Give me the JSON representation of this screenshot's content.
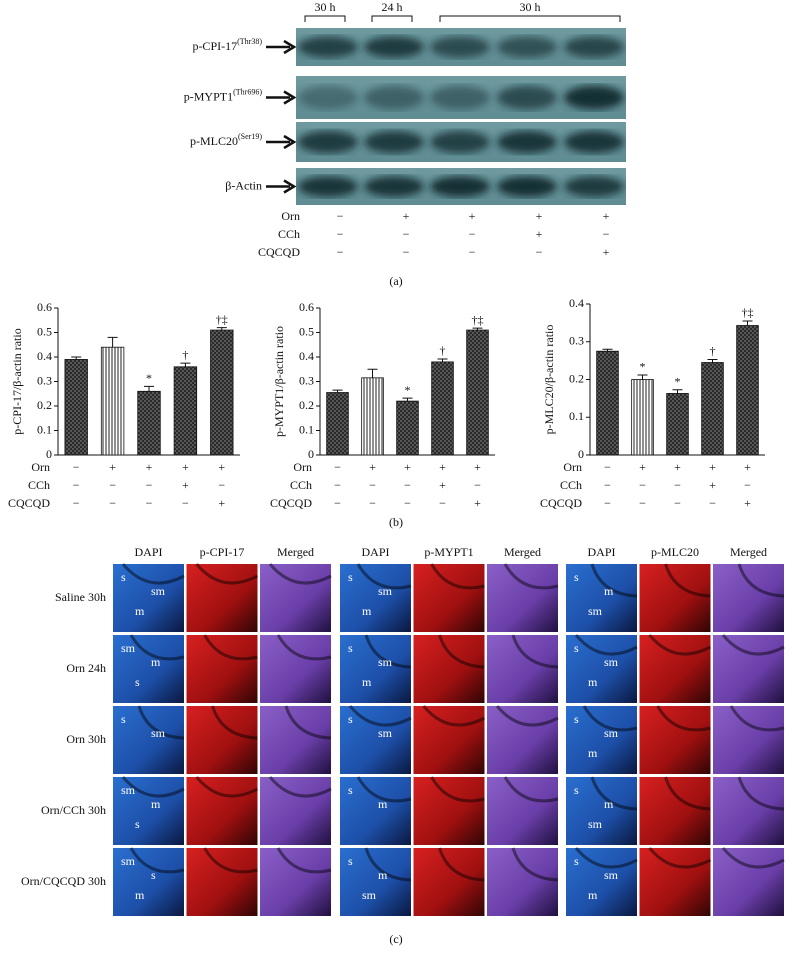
{
  "panel_a": {
    "time_labels": [
      "30 h",
      "24 h",
      "30 h"
    ],
    "blots": [
      {
        "name": "p-CPI-17",
        "site": "(Thr38)"
      },
      {
        "name": "p-MYPT1",
        "site": "(Thr696)"
      },
      {
        "name": "p-MLC20",
        "site": "(Ser19)"
      },
      {
        "name": "β-Actin"
      }
    ],
    "treatments": [
      {
        "label": "Orn",
        "signs": [
          "−",
          "+",
          "+",
          "+",
          "+"
        ]
      },
      {
        "label": "CCh",
        "signs": [
          "−",
          "−",
          "−",
          "+",
          "−"
        ]
      },
      {
        "label": "CQCQD",
        "signs": [
          "−",
          "−",
          "−",
          "−",
          "+"
        ]
      }
    ],
    "caption": "(a)"
  },
  "chart_data": [
    {
      "type": "bar",
      "y_label": "p-CPI-17/β-actin ratio",
      "values": [
        0.39,
        0.44,
        0.26,
        0.36,
        0.51
      ],
      "errors": [
        0.01,
        0.04,
        0.02,
        0.015,
        0.01
      ],
      "significance": [
        null,
        null,
        "*",
        "†",
        "†‡"
      ],
      "fills": [
        "dots",
        "stripes",
        "dots",
        "dots",
        "dots"
      ],
      "ylim": [
        0,
        0.6
      ],
      "yticks": [
        0,
        0.1,
        0.2,
        0.3,
        0.4,
        0.5,
        0.6
      ],
      "treatments": [
        {
          "label": "Orn",
          "signs": [
            "−",
            "+",
            "+",
            "+",
            "+"
          ]
        },
        {
          "label": "CCh",
          "signs": [
            "−",
            "−",
            "−",
            "+",
            "−"
          ]
        },
        {
          "label": "CQCQD",
          "signs": [
            "−",
            "−",
            "−",
            "−",
            "+"
          ]
        }
      ]
    },
    {
      "type": "bar",
      "y_label": "p-MYPT1/β-actin ratio",
      "values": [
        0.255,
        0.315,
        0.22,
        0.38,
        0.51
      ],
      "errors": [
        0.01,
        0.035,
        0.012,
        0.012,
        0.008
      ],
      "significance": [
        null,
        null,
        "*",
        "†",
        "†‡"
      ],
      "fills": [
        "dots",
        "stripes",
        "dots",
        "dots",
        "dots"
      ],
      "ylim": [
        0,
        0.6
      ],
      "yticks": [
        0,
        0.1,
        0.2,
        0.3,
        0.4,
        0.5,
        0.6
      ],
      "treatments": [
        {
          "label": "Orn",
          "signs": [
            "−",
            "+",
            "+",
            "+",
            "+"
          ]
        },
        {
          "label": "CCh",
          "signs": [
            "−",
            "−",
            "−",
            "+",
            "−"
          ]
        },
        {
          "label": "CQCQD",
          "signs": [
            "−",
            "−",
            "−",
            "−",
            "+"
          ]
        }
      ]
    },
    {
      "type": "bar",
      "y_label": "p-MLC20/β-actin ratio",
      "values": [
        0.275,
        0.2,
        0.163,
        0.245,
        0.343
      ],
      "errors": [
        0.005,
        0.012,
        0.01,
        0.008,
        0.012
      ],
      "significance": [
        null,
        "*",
        "*",
        "†",
        "†‡"
      ],
      "fills": [
        "dots",
        "stripes",
        "dots",
        "dots",
        "dots"
      ],
      "ylim": [
        0,
        0.4
      ],
      "yticks": [
        0,
        0.1,
        0.2,
        0.3,
        0.4
      ],
      "treatments": [
        {
          "label": "Orn",
          "signs": [
            "−",
            "+",
            "+",
            "+",
            "+"
          ]
        },
        {
          "label": "CCh",
          "signs": [
            "−",
            "−",
            "−",
            "+",
            "−"
          ]
        },
        {
          "label": "CQCQD",
          "signs": [
            "−",
            "−",
            "−",
            "−",
            "+"
          ]
        }
      ]
    }
  ],
  "panel_b": {
    "caption": "(b)"
  },
  "panel_c": {
    "rows": [
      "Saline 30h",
      "Orn 24h",
      "Orn 30h",
      "Orn/CCh 30h",
      "Orn/CQCQD 30h"
    ],
    "groups": [
      {
        "headers": [
          "DAPI",
          "p-CPI-17",
          "Merged"
        ],
        "labels": [
          [
            "s",
            "sm",
            "m"
          ],
          [
            "sm",
            "m",
            "s"
          ],
          [
            "s",
            "sm"
          ],
          [
            "sm",
            "m",
            "s"
          ],
          [
            "sm",
            "s",
            "m"
          ]
        ]
      },
      {
        "headers": [
          "DAPI",
          "p-MYPT1",
          "Merged"
        ],
        "labels": [
          [
            "s",
            "sm",
            "m"
          ],
          [
            "s",
            "sm",
            "m"
          ],
          [
            "s",
            "sm"
          ],
          [
            "s",
            "m"
          ],
          [
            "s",
            "m",
            "sm"
          ]
        ]
      },
      {
        "headers": [
          "DAPI",
          "p-MLC20",
          "Merged"
        ],
        "labels": [
          [
            "s",
            "m",
            "sm"
          ],
          [
            "s",
            "sm",
            "m"
          ],
          [
            "s",
            "sm",
            "m"
          ],
          [
            "s",
            "m",
            "sm"
          ],
          [
            "s",
            "sm",
            "m"
          ]
        ]
      }
    ],
    "caption": "(c)"
  }
}
